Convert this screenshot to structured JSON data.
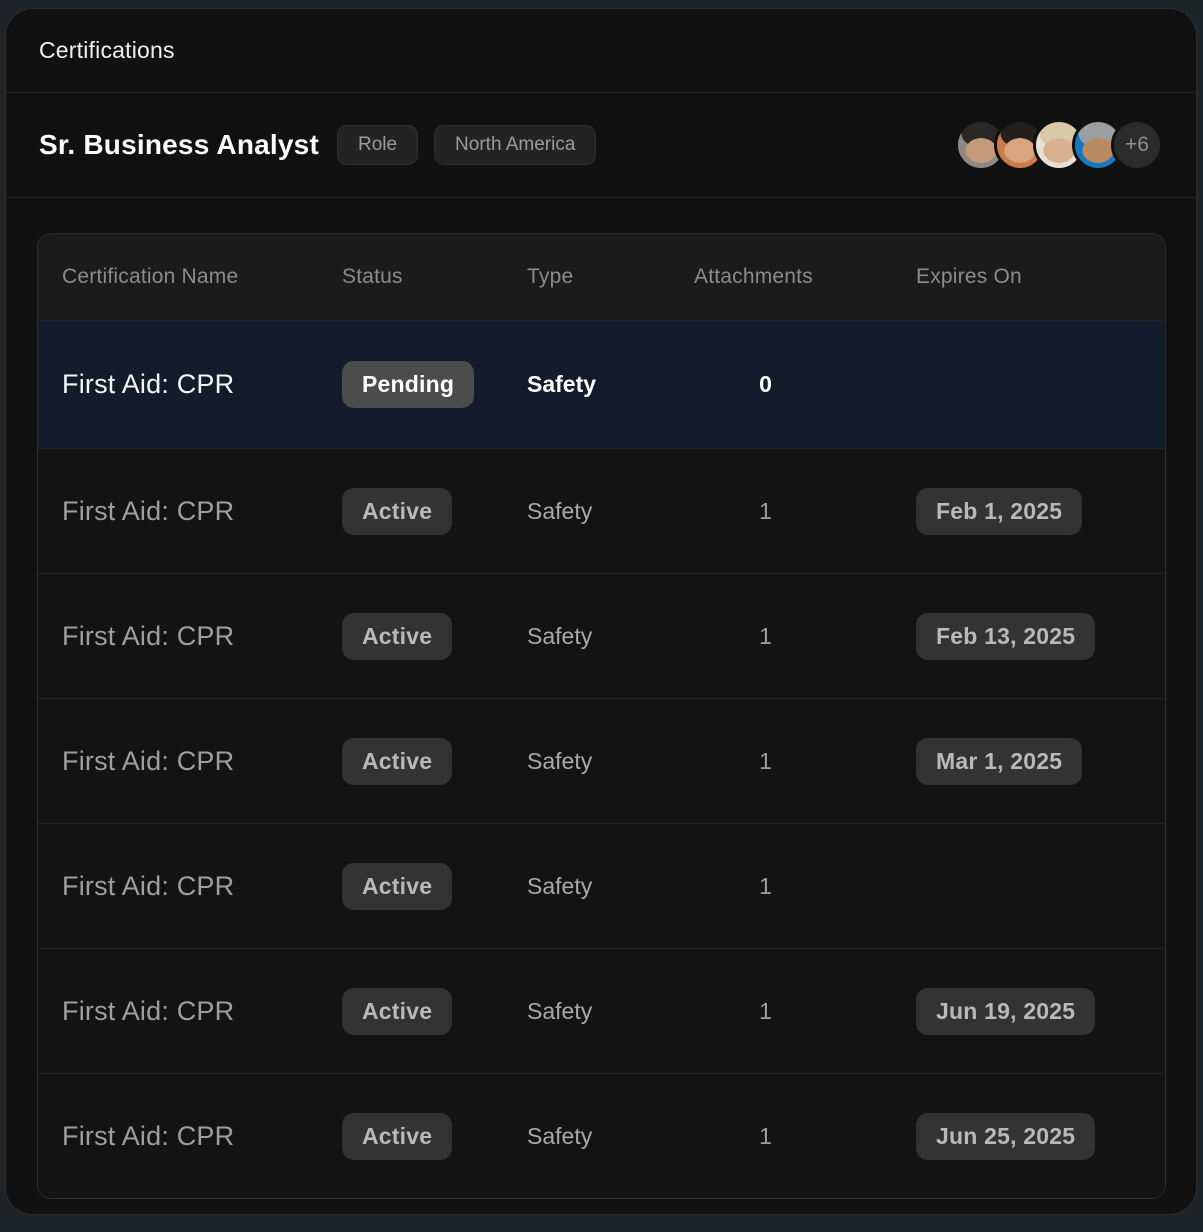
{
  "window": {
    "title": "Certifications"
  },
  "role_header": {
    "title": "Sr. Business Analyst",
    "badges": [
      {
        "label": "Role"
      },
      {
        "label": "North America"
      }
    ],
    "avatars": [
      {
        "name": "avatar-user-1",
        "bg": "#8d8a86",
        "hair": "#2b2724",
        "skin": "#c49a78"
      },
      {
        "name": "avatar-user-2",
        "bg": "#c97c4a",
        "hair": "#241f1c",
        "skin": "#d8a57e"
      },
      {
        "name": "avatar-user-3",
        "bg": "#e8e0d4",
        "hair": "#d8c9a8",
        "skin": "#d9b291"
      },
      {
        "name": "avatar-user-4",
        "bg": "#1878be",
        "hair": "#9aa0a2",
        "skin": "#b98a62"
      }
    ],
    "overflow_count": "+6"
  },
  "table": {
    "columns": [
      "Certification Name",
      "Status",
      "Type",
      "Attachments",
      "Expires On"
    ],
    "rows": [
      {
        "name": "First Aid: CPR",
        "status": "Pending",
        "type": "Safety",
        "attachments": "0",
        "expires": "",
        "highlighted": true
      },
      {
        "name": "First Aid: CPR",
        "status": "Active",
        "type": "Safety",
        "attachments": "1",
        "expires": "Feb 1, 2025",
        "highlighted": false
      },
      {
        "name": "First Aid: CPR",
        "status": "Active",
        "type": "Safety",
        "attachments": "1",
        "expires": "Feb 13, 2025",
        "highlighted": false
      },
      {
        "name": "First Aid: CPR",
        "status": "Active",
        "type": "Safety",
        "attachments": "1",
        "expires": "Mar 1, 2025",
        "highlighted": false
      },
      {
        "name": "First Aid: CPR",
        "status": "Active",
        "type": "Safety",
        "attachments": "1",
        "expires": "",
        "highlighted": false
      },
      {
        "name": "First Aid: CPR",
        "status": "Active",
        "type": "Safety",
        "attachments": "1",
        "expires": "Jun 19, 2025",
        "highlighted": false
      },
      {
        "name": "First Aid: CPR",
        "status": "Active",
        "type": "Safety",
        "attachments": "1",
        "expires": "Jun 25, 2025",
        "highlighted": false
      }
    ]
  },
  "colors": {
    "highlight_row_bg": "#131c2c",
    "badge_pending_bg": "#4c4c4c",
    "badge_default_bg": "#333333",
    "card_bg": "#131313",
    "card_header_bg": "#1b1b1b",
    "window_bg": "#111111",
    "backdrop": "#1e2428"
  }
}
